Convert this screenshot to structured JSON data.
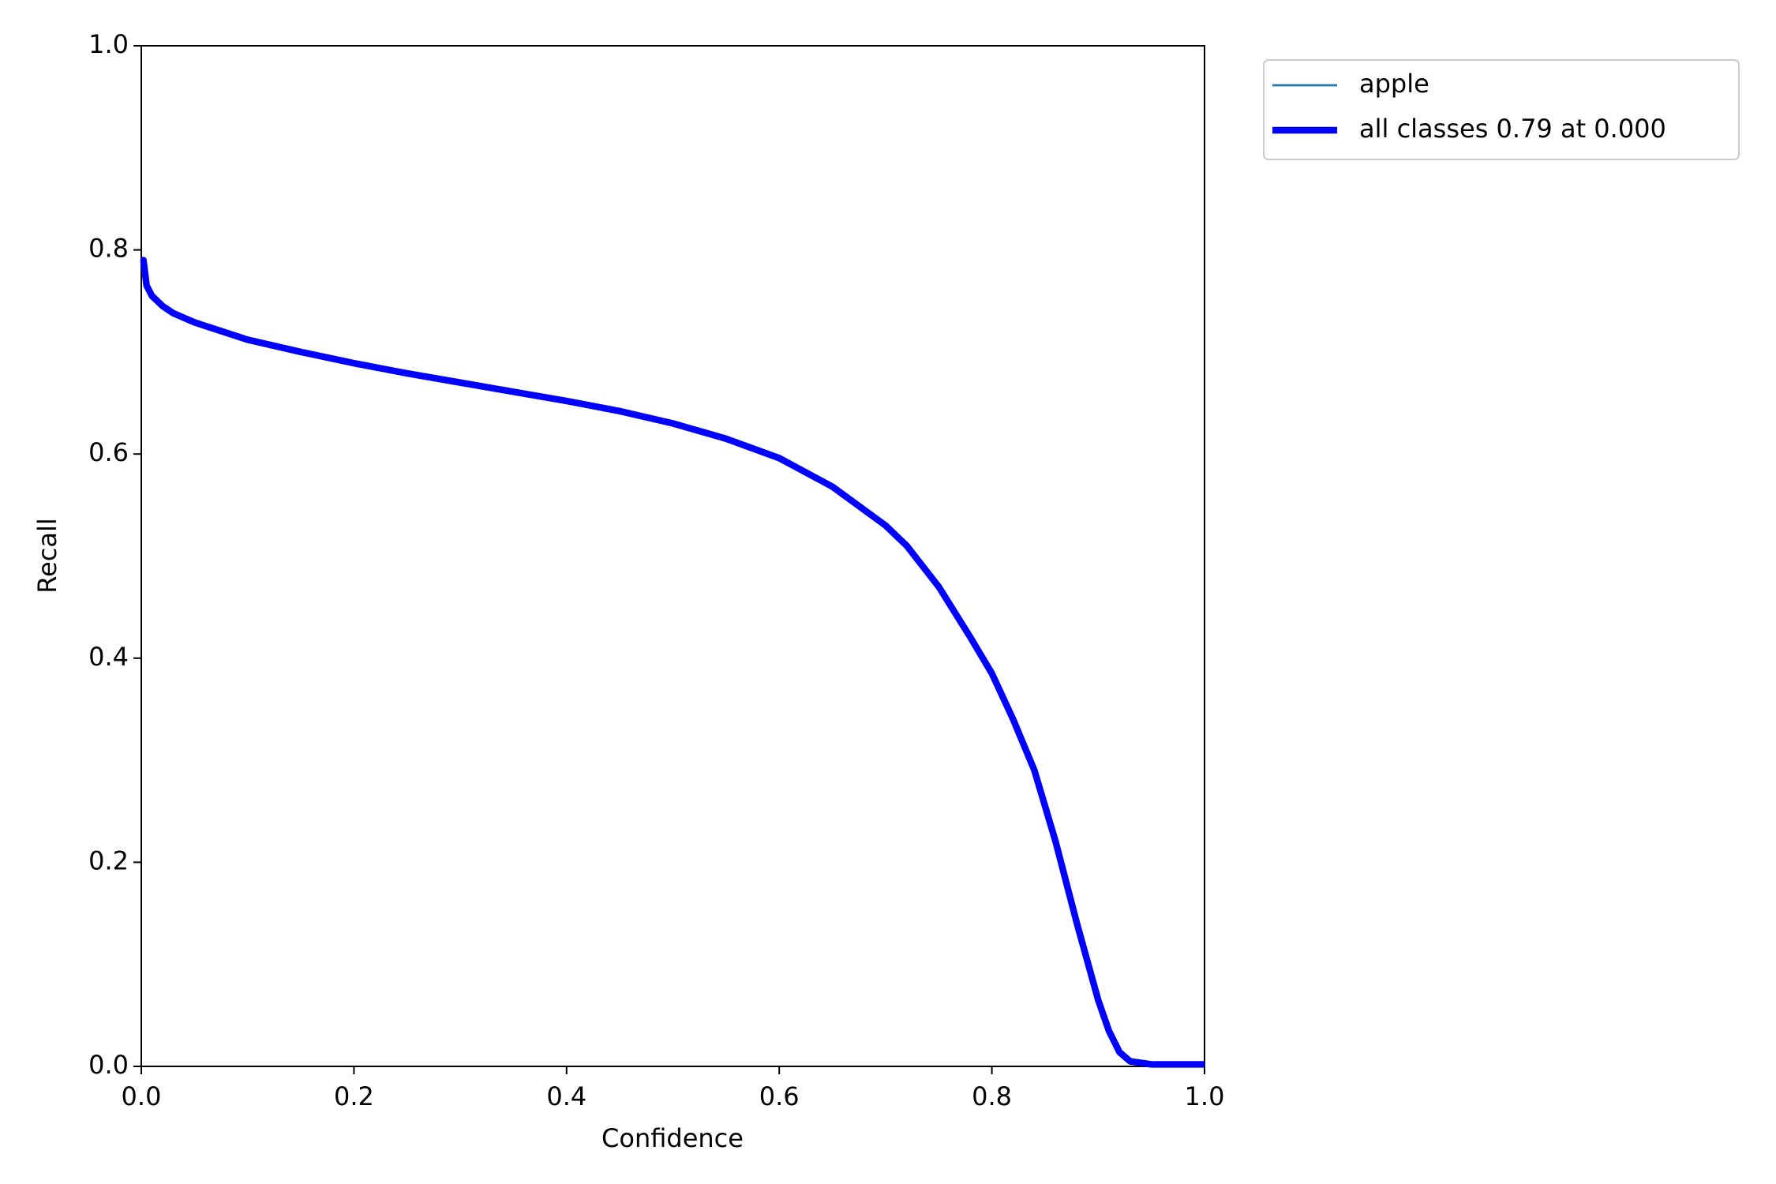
{
  "chart_data": {
    "type": "line",
    "xlabel": "Confidence",
    "ylabel": "Recall",
    "x": [
      0.0,
      0.002,
      0.005,
      0.01,
      0.02,
      0.03,
      0.05,
      0.1,
      0.15,
      0.2,
      0.25,
      0.3,
      0.35,
      0.4,
      0.45,
      0.5,
      0.55,
      0.6,
      0.65,
      0.7,
      0.72,
      0.75,
      0.78,
      0.8,
      0.82,
      0.84,
      0.86,
      0.88,
      0.9,
      0.91,
      0.92,
      0.93,
      0.95,
      1.0
    ],
    "series": [
      {
        "name": "apple",
        "color": "#1f77b4",
        "width": 1,
        "values": [
          0.79,
          0.79,
          0.765,
          0.755,
          0.745,
          0.738,
          0.729,
          0.712,
          0.7,
          0.689,
          0.679,
          0.67,
          0.661,
          0.652,
          0.642,
          0.63,
          0.615,
          0.596,
          0.568,
          0.53,
          0.51,
          0.47,
          0.42,
          0.385,
          0.34,
          0.29,
          0.22,
          0.14,
          0.065,
          0.035,
          0.014,
          0.005,
          0.002,
          0.002
        ]
      },
      {
        "name": "all classes 0.79 at 0.000",
        "color": "#0000ff",
        "width": 3,
        "values": [
          0.79,
          0.79,
          0.765,
          0.755,
          0.745,
          0.738,
          0.729,
          0.712,
          0.7,
          0.689,
          0.679,
          0.67,
          0.661,
          0.652,
          0.642,
          0.63,
          0.615,
          0.596,
          0.568,
          0.53,
          0.51,
          0.47,
          0.42,
          0.385,
          0.34,
          0.29,
          0.22,
          0.14,
          0.065,
          0.035,
          0.014,
          0.005,
          0.002,
          0.002
        ]
      }
    ],
    "xlim": [
      0,
      1
    ],
    "ylim": [
      0,
      1
    ],
    "xticks": [
      {
        "value": 0,
        "label": "0.0"
      },
      0.2,
      0.4,
      0.6,
      0.8,
      {
        "value": 1,
        "label": "1.0"
      }
    ],
    "yticks": [
      {
        "value": 0,
        "label": "0.0"
      },
      0.2,
      0.4,
      0.6,
      0.8,
      {
        "value": 1,
        "label": "1.0"
      }
    ],
    "grid": false,
    "legend": "outside upper right"
  }
}
